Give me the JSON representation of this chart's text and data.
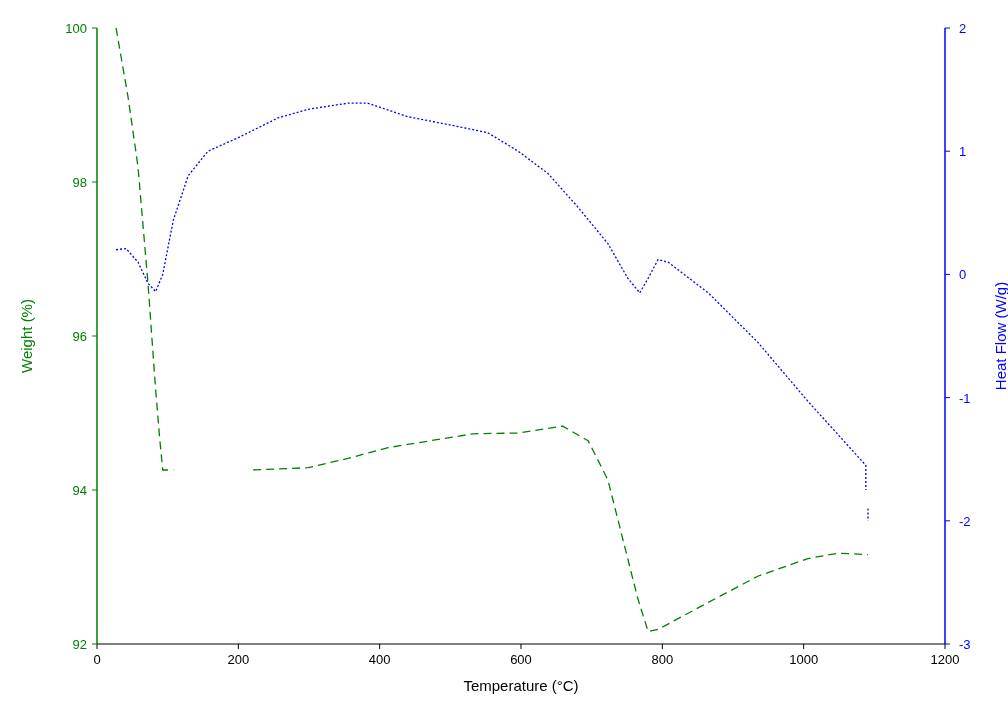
{
  "chart_data": {
    "type": "line",
    "xlabel": "Temperature (°C)",
    "ylabel": "Weight (%)",
    "y2label": "Heat Flow (W/g)",
    "xlim": [
      0,
      1200
    ],
    "xticks": [
      0,
      200,
      400,
      600,
      800,
      1000,
      1200
    ],
    "ylim": [
      92,
      100
    ],
    "yticks": [
      92,
      94,
      96,
      98,
      100
    ],
    "y2lim": [
      -3,
      2
    ],
    "y2ticks": [
      -3,
      -2,
      -1,
      0,
      1,
      2
    ],
    "grid": false,
    "series": [
      {
        "color": "#008000",
        "line_style": "dashed",
        "axis": "y",
        "x": [
          27,
          44,
          58,
          72,
          83,
          89,
          93,
          108,
          150,
          221,
          299,
          355,
          412,
          532,
          596,
          659,
          695,
          723,
          751,
          765,
          780,
          794,
          865,
          935,
          1006,
          1049,
          1091
        ],
        "values": [
          100,
          99.1,
          98.2,
          96.7,
          95.3,
          94.64,
          94.26,
          94.26,
          null,
          94.26,
          94.29,
          94.41,
          94.55,
          94.73,
          94.74,
          94.83,
          94.64,
          94.13,
          93.11,
          92.6,
          92.16,
          92.19,
          92.54,
          92.88,
          93.11,
          93.18,
          93.16
        ]
      },
      {
        "color": "#0000ff",
        "line_style": "dotted",
        "axis": "y2",
        "x": [
          27,
          41,
          58,
          72,
          83,
          93,
          108,
          129,
          157,
          200,
          256,
          299,
          355,
          383,
          440,
          511,
          553,
          596,
          638,
          680,
          723,
          751,
          768,
          780,
          794,
          808,
          865,
          935,
          1006,
          1088,
          1088,
          1090,
          1091,
          1091
        ],
        "values": [
          0.2,
          0.21,
          0.1,
          -0.07,
          -0.14,
          0,
          0.44,
          0.8,
          1,
          1.11,
          1.27,
          1.34,
          1.39,
          1.39,
          1.28,
          1.2,
          1.15,
          1,
          0.82,
          0.55,
          0.25,
          -0.03,
          -0.15,
          -0.03,
          0.12,
          0.1,
          -0.15,
          -0.55,
          -1.03,
          -1.55,
          -1.75,
          null,
          -1.9,
          -2
        ]
      }
    ]
  }
}
